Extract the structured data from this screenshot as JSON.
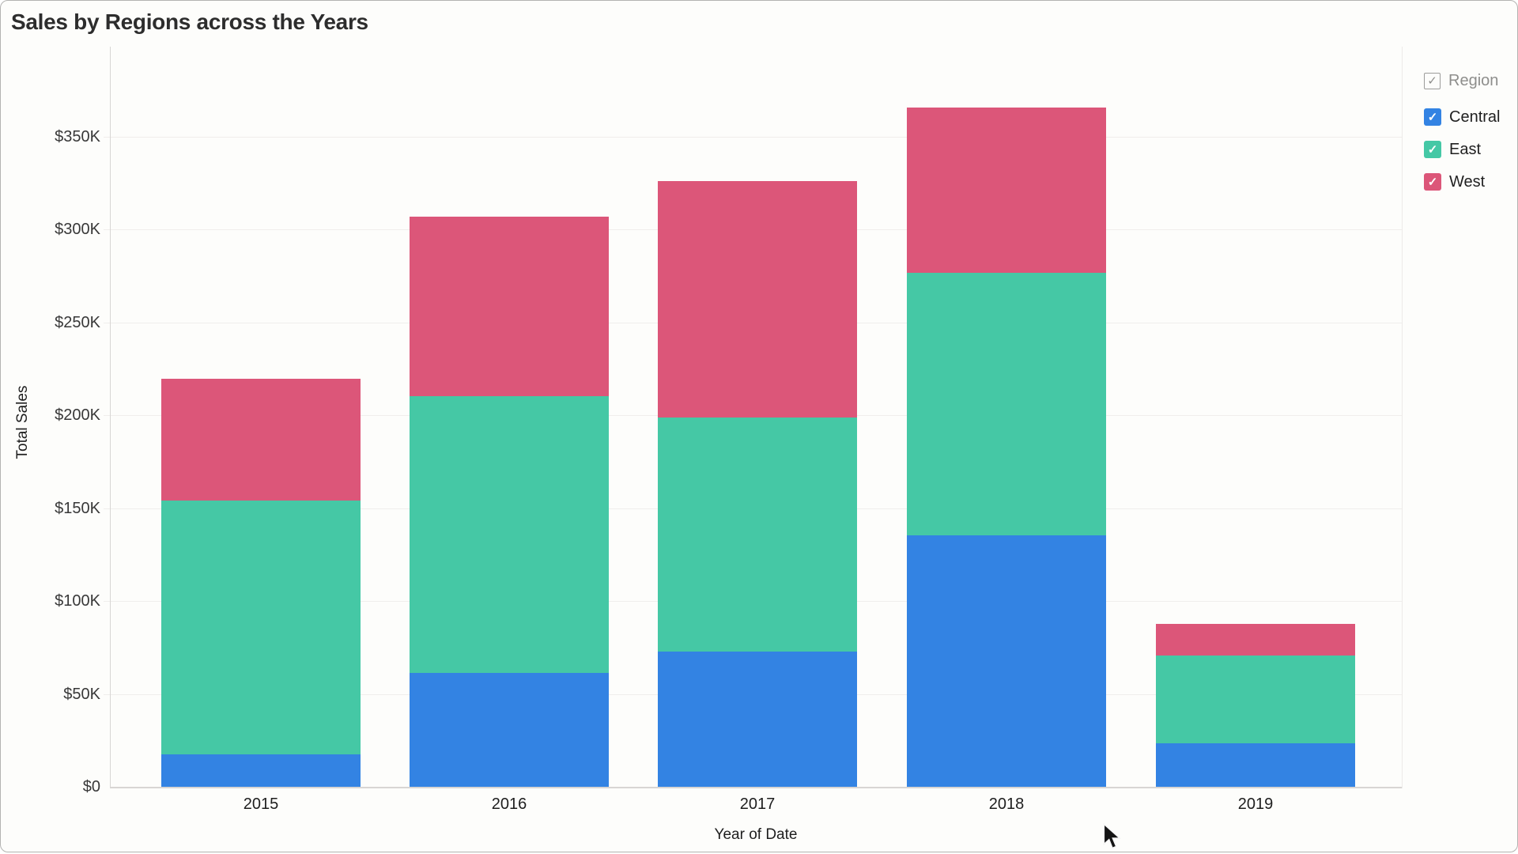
{
  "window": {
    "title": "Sales by Regions across the Years"
  },
  "legend": {
    "header": {
      "label": "Region",
      "checked": true
    },
    "check_glyph": "✓",
    "items": [
      {
        "label": "Central",
        "color": "#3383e3",
        "checked": true
      },
      {
        "label": "East",
        "color": "#45c8a5",
        "checked": true
      },
      {
        "label": "West",
        "color": "#dc5679",
        "checked": true
      }
    ]
  },
  "axes": {
    "y": {
      "title": "Total Sales",
      "ticks": [
        "$0",
        "$50K",
        "$100K",
        "$150K",
        "$200K",
        "$250K",
        "$300K",
        "$350K"
      ],
      "tick_values": [
        0,
        50,
        100,
        150,
        200,
        250,
        300,
        350
      ]
    },
    "x": {
      "title": "Year of Date",
      "categories": [
        "2015",
        "2016",
        "2017",
        "2018",
        "2019"
      ]
    }
  },
  "chart_data": {
    "type": "bar",
    "stacked": true,
    "title": "Sales by Regions across the Years",
    "xlabel": "Year of Date",
    "ylabel": "Total Sales",
    "units": "USD thousands",
    "ylim": [
      0,
      397
    ],
    "grid": true,
    "legend_position": "top-right",
    "categories": [
      "2015",
      "2016",
      "2017",
      "2018",
      "2019"
    ],
    "series": [
      {
        "name": "Central",
        "color": "#3383e3",
        "values": [
          17.4,
          61.3,
          72.8,
          135.3,
          23.4
        ]
      },
      {
        "name": "East",
        "color": "#45c8a5",
        "values": [
          136.6,
          148.9,
          125.9,
          141.3,
          47.2
        ]
      },
      {
        "name": "West",
        "color": "#dc5679",
        "values": [
          65.6,
          96.6,
          127.3,
          88.9,
          17.0
        ]
      }
    ],
    "totals": [
      219.6,
      306.8,
      326.0,
      365.5,
      87.6
    ]
  }
}
